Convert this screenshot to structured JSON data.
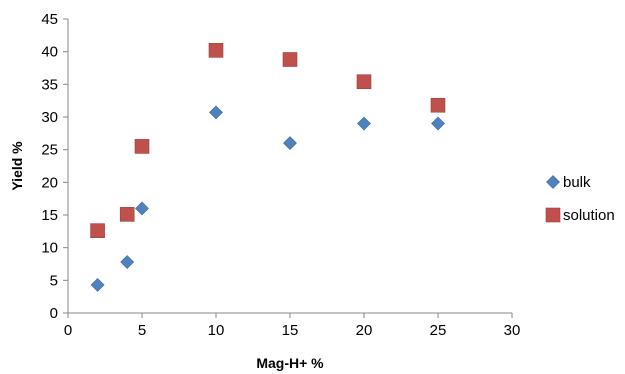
{
  "chart_data": {
    "type": "scatter",
    "title": "",
    "xlabel": "Mag-H+ %",
    "ylabel": "Yield %",
    "xlim": [
      0,
      30
    ],
    "ylim": [
      0,
      45
    ],
    "xticks": [
      0,
      5,
      10,
      15,
      20,
      25,
      30
    ],
    "yticks": [
      0,
      5,
      10,
      15,
      20,
      25,
      30,
      35,
      40,
      45
    ],
    "grid": false,
    "legend_position": "right",
    "series": [
      {
        "name": "bulk",
        "marker": "diamond",
        "color": "#4F81BD",
        "x": [
          2,
          4,
          5,
          10,
          15,
          20,
          25
        ],
        "y": [
          4.3,
          7.8,
          16.0,
          30.7,
          26.0,
          29.0,
          29.0
        ]
      },
      {
        "name": "solution",
        "marker": "square",
        "color": "#C0504D",
        "x": [
          2,
          4,
          5,
          10,
          15,
          20,
          25
        ],
        "y": [
          12.6,
          15.1,
          25.5,
          40.2,
          38.8,
          35.4,
          31.8
        ]
      }
    ]
  }
}
